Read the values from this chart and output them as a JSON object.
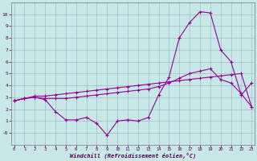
{
  "xlabel": "Windchill (Refroidissement éolien,°C)",
  "background_color": "#c8e8e8",
  "line_color": "#990099",
  "grid_color": "#9bbfbf",
  "x": [
    0,
    1,
    2,
    3,
    4,
    5,
    6,
    7,
    8,
    9,
    10,
    11,
    12,
    13,
    14,
    15,
    16,
    17,
    18,
    19,
    20,
    21,
    22,
    23
  ],
  "line1_wavy": [
    2.7,
    2.9,
    3.0,
    2.8,
    1.8,
    1.1,
    1.1,
    1.3,
    0.8,
    -0.2,
    1.0,
    1.1,
    1.0,
    1.3,
    3.2,
    4.7,
    8.0,
    9.3,
    10.2,
    10.1,
    7.0,
    6.0,
    3.2,
    4.2
  ],
  "line2_mid": [
    2.7,
    2.9,
    3.0,
    2.9,
    2.9,
    2.9,
    3.0,
    3.1,
    3.2,
    3.3,
    3.4,
    3.5,
    3.6,
    3.7,
    3.9,
    4.2,
    4.6,
    5.0,
    5.2,
    5.4,
    4.5,
    4.2,
    3.3,
    2.2
  ],
  "line3_smooth": [
    2.7,
    2.9,
    3.1,
    3.1,
    3.2,
    3.3,
    3.4,
    3.5,
    3.6,
    3.7,
    3.8,
    3.9,
    4.0,
    4.1,
    4.2,
    4.3,
    4.4,
    4.5,
    4.6,
    4.7,
    4.8,
    4.9,
    5.0,
    2.2
  ],
  "ylim": [
    -1,
    11
  ],
  "yticks": [
    0,
    1,
    2,
    3,
    4,
    5,
    6,
    7,
    8,
    9,
    10
  ],
  "ytick_labels": [
    "-0",
    "1",
    "2",
    "3",
    "4",
    "5",
    "6",
    "7",
    "8",
    "9",
    "10"
  ],
  "figsize": [
    3.2,
    2.0
  ],
  "dpi": 100
}
